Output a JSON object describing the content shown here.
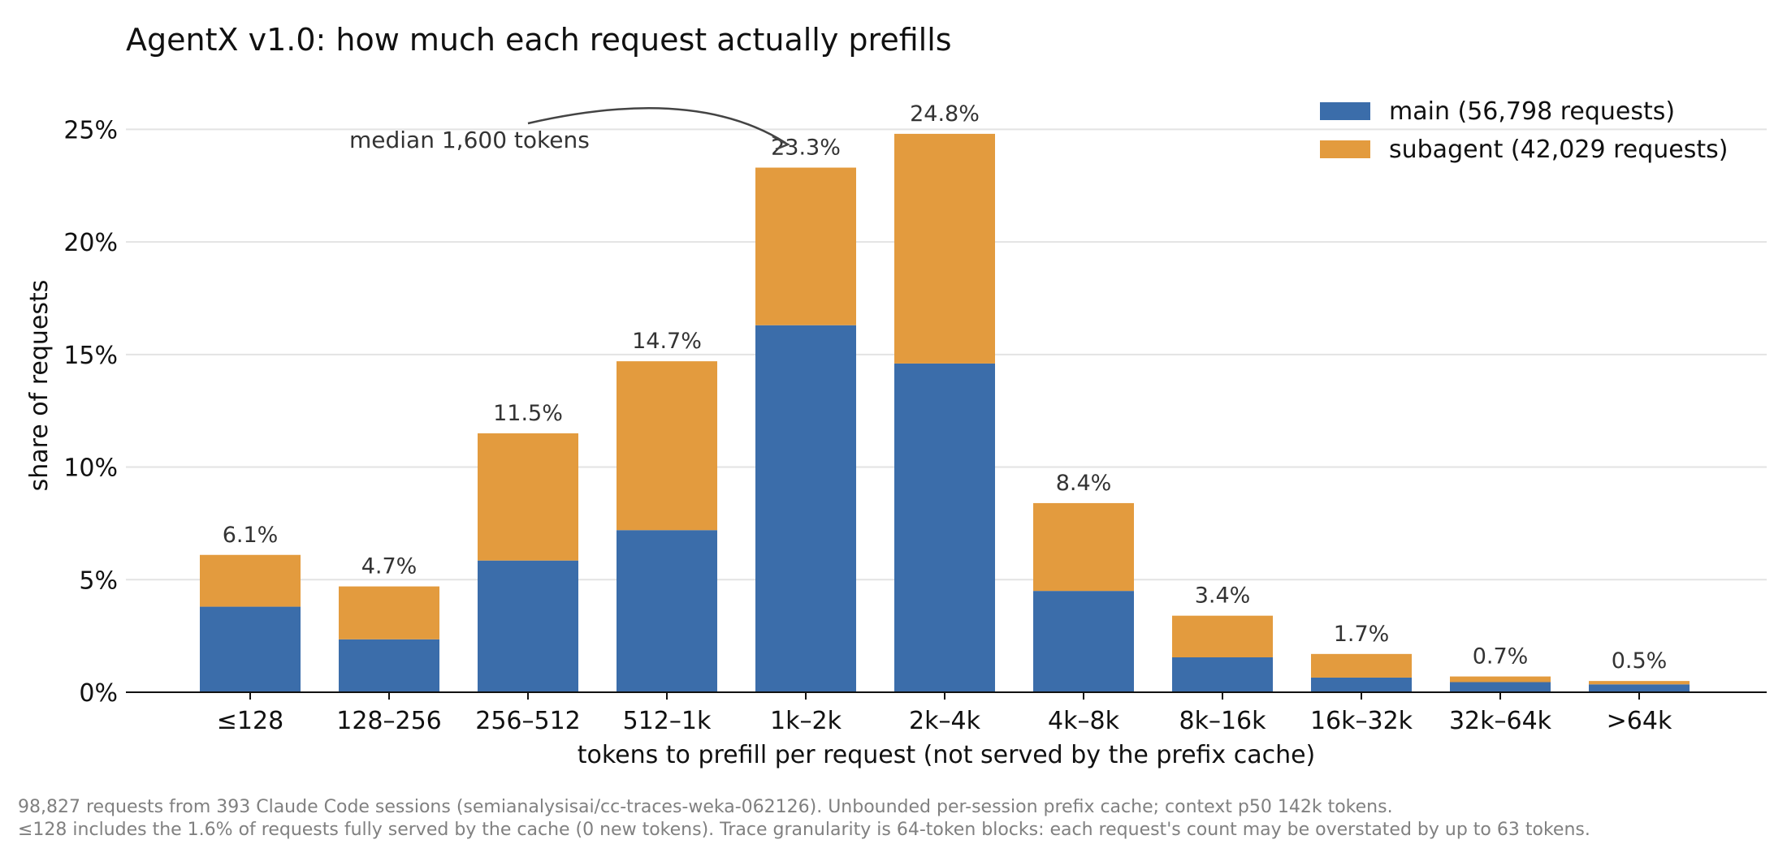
{
  "chart_data": {
    "type": "bar",
    "stacked": true,
    "title": "AgentX v1.0: how much each request actually prefills",
    "xlabel": "tokens to prefill per request (not served by the prefix cache)",
    "ylabel": "share of requests",
    "ylim": [
      0,
      27.5
    ],
    "yticks": [
      0,
      5,
      10,
      15,
      20,
      25
    ],
    "ytick_labels": [
      "0%",
      "5%",
      "10%",
      "15%",
      "20%",
      "25%"
    ],
    "grid": "horizontal",
    "legend_position": "top-right",
    "categories": [
      "≤128",
      "128–256",
      "256–512",
      "512–1k",
      "1k–2k",
      "2k–4k",
      "4k–8k",
      "8k–16k",
      "16k–32k",
      "32k–64k",
      ">64k"
    ],
    "series": [
      {
        "name": "main (56,798 requests)",
        "color": "#3b6daa",
        "values": [
          3.8,
          2.35,
          5.85,
          7.2,
          16.3,
          14.6,
          4.5,
          1.55,
          0.65,
          0.45,
          0.35
        ]
      },
      {
        "name": "subagent (42,029 requests)",
        "color": "#e39b3e",
        "values": [
          2.3,
          2.35,
          5.65,
          7.5,
          7.0,
          10.2,
          3.9,
          1.85,
          1.05,
          0.25,
          0.15
        ]
      }
    ],
    "totals": [
      6.1,
      4.7,
      11.5,
      14.7,
      23.3,
      24.8,
      8.4,
      3.4,
      1.7,
      0.7,
      0.5
    ],
    "total_labels": [
      "6.1%",
      "4.7%",
      "11.5%",
      "14.7%",
      "23.3%",
      "24.8%",
      "8.4%",
      "3.4%",
      "1.7%",
      "0.7%",
      "0.5%"
    ],
    "annotation": {
      "text": "median 1,600 tokens",
      "points_to": "1k–2k"
    }
  },
  "footnotes": [
    "98,827 requests from 393 Claude Code sessions (semianalysisai/cc-traces-weka-062126). Unbounded per-session prefix cache; context p50 142k tokens.",
    "≤128 includes the 1.6% of requests fully served by the cache (0 new tokens). Trace granularity is 64-token blocks: each request's count may be overstated by up to 63 tokens."
  ]
}
